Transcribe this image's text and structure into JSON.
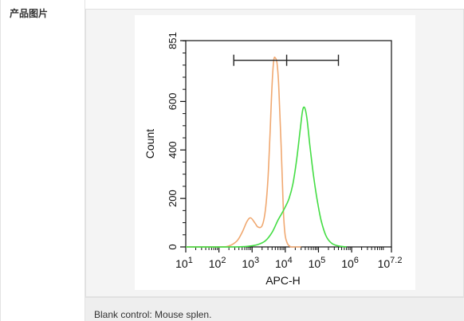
{
  "product": {
    "label": "产品图片",
    "caption": "Blank control: Mouse splen."
  },
  "chart_data": {
    "type": "line",
    "xlabel": "APC-H",
    "ylabel": "Count",
    "x_scale": "log",
    "xlim": [
      10,
      15848932
    ],
    "ylim": [
      0,
      851
    ],
    "x_ticks": [
      {
        "value": 10,
        "base": "10",
        "exp": "1"
      },
      {
        "value": 100,
        "base": "10",
        "exp": "2"
      },
      {
        "value": 1000,
        "base": "10",
        "exp": "3"
      },
      {
        "value": 10000,
        "base": "10",
        "exp": "4"
      },
      {
        "value": 100000,
        "base": "10",
        "exp": "5"
      },
      {
        "value": 1000000,
        "base": "10",
        "exp": "6"
      },
      {
        "value": 15848932,
        "base": "10",
        "exp": "7.2"
      }
    ],
    "y_ticks": [
      "0",
      "200",
      "400",
      "600",
      "851"
    ],
    "y_tick_values": [
      0,
      200,
      400,
      600,
      851
    ],
    "gate": {
      "x_start": 280,
      "x_mid": 11000,
      "x_end": 400000,
      "y": 770
    },
    "series": [
      {
        "color": "#F0A870",
        "x": [
          10,
          100,
          200,
          350,
          500,
          700,
          900,
          1200,
          1500,
          2000,
          2500,
          3000,
          3500,
          4000,
          4500,
          5000,
          5600,
          6200,
          6800,
          7500,
          8200,
          9000,
          10000,
          11500,
          13000,
          15000,
          20000,
          30000
        ],
        "y": [
          0,
          0,
          4,
          25,
          60,
          105,
          120,
          100,
          82,
          88,
          150,
          280,
          480,
          670,
          770,
          780,
          760,
          690,
          560,
          420,
          260,
          120,
          45,
          15,
          5,
          0,
          0,
          0
        ]
      },
      {
        "color": "#44DD44",
        "x": [
          10,
          300,
          800,
          1500,
          2500,
          4000,
          6000,
          8000,
          10000,
          13000,
          17000,
          22000,
          28000,
          33000,
          38000,
          45000,
          55000,
          70000,
          90000,
          120000,
          170000,
          250000,
          400000,
          700000
        ],
        "y": [
          0,
          0,
          3,
          10,
          25,
          60,
          110,
          140,
          165,
          200,
          260,
          360,
          480,
          560,
          575,
          530,
          420,
          300,
          200,
          110,
          45,
          15,
          4,
          0
        ]
      }
    ]
  }
}
